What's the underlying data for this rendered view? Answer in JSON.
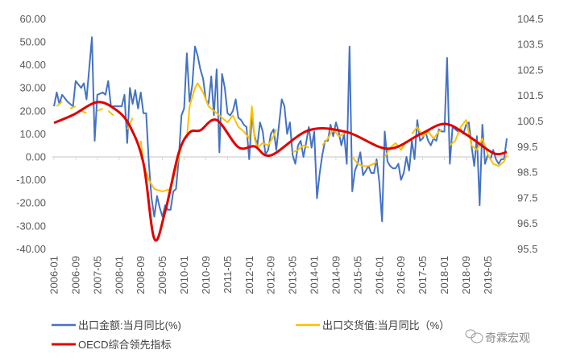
{
  "chart_data": {
    "type": "line",
    "title": "",
    "xlabel": "",
    "ylabel": "",
    "y_left": {
      "ticks": [
        "60.00",
        "50.00",
        "40.00",
        "30.00",
        "20.00",
        "10.00",
        "0.00",
        "-10.00",
        "-20.00",
        "-30.00",
        "-40.00"
      ],
      "range": [
        -40,
        60
      ]
    },
    "y_right": {
      "ticks": [
        "104.5",
        "103.5",
        "102.5",
        "101.5",
        "100.5",
        "99.5",
        "98.5",
        "97.5",
        "96.5",
        "95.5"
      ],
      "range": [
        95.5,
        104.5
      ]
    },
    "x_ticks": [
      "2006-01",
      "2006-09",
      "2007-05",
      "2008-01",
      "2008-09",
      "2009-05",
      "2010-01",
      "2010-09",
      "2011-05",
      "2012-01",
      "2012-09",
      "2013-05",
      "2014-01",
      "2014-09",
      "2015-05",
      "2016-01",
      "2016-09",
      "2017-05",
      "2018-01",
      "2018-09",
      "2019-05"
    ],
    "grid": false,
    "legend_placement": "bottom",
    "series": [
      {
        "name": "出口金额:当月同比(%)",
        "axis": "left",
        "color": "#4472C4",
        "points": [
          [
            "2006-01",
            22
          ],
          [
            "2006-02",
            28
          ],
          [
            "2006-03",
            23
          ],
          [
            "2006-04",
            27
          ],
          [
            "2006-06",
            24
          ],
          [
            "2006-08",
            22
          ],
          [
            "2006-09",
            33
          ],
          [
            "2006-11",
            30
          ],
          [
            "2006-12",
            32
          ],
          [
            "2007-01",
            25
          ],
          [
            "2007-03",
            52
          ],
          [
            "2007-04",
            7
          ],
          [
            "2007-05",
            27
          ],
          [
            "2007-07",
            28
          ],
          [
            "2007-08",
            27
          ],
          [
            "2007-09",
            33
          ],
          [
            "2007-10",
            22
          ],
          [
            "2007-12",
            22
          ],
          [
            "2008-02",
            22
          ],
          [
            "2008-03",
            27
          ],
          [
            "2008-04",
            6
          ],
          [
            "2008-05",
            30
          ],
          [
            "2008-06",
            23
          ],
          [
            "2008-07",
            29
          ],
          [
            "2008-08",
            21
          ],
          [
            "2008-09",
            28
          ],
          [
            "2008-10",
            19
          ],
          [
            "2008-11",
            19
          ],
          [
            "2008-12",
            -3
          ],
          [
            "2009-01",
            -18
          ],
          [
            "2009-02",
            -26
          ],
          [
            "2009-03",
            -17
          ],
          [
            "2009-04",
            -22
          ],
          [
            "2009-05",
            -26
          ],
          [
            "2009-06",
            -21
          ],
          [
            "2009-07",
            -23
          ],
          [
            "2009-08",
            -23
          ],
          [
            "2009-09",
            -15
          ],
          [
            "2009-10",
            -14
          ],
          [
            "2009-11",
            -1
          ],
          [
            "2009-12",
            18
          ],
          [
            "2010-01",
            21
          ],
          [
            "2010-02",
            45
          ],
          [
            "2010-03",
            24
          ],
          [
            "2010-04",
            31
          ],
          [
            "2010-05",
            48
          ],
          [
            "2010-06",
            44
          ],
          [
            "2010-07",
            38
          ],
          [
            "2010-08",
            34
          ],
          [
            "2010-09",
            25
          ],
          [
            "2010-10",
            23
          ],
          [
            "2010-11",
            35
          ],
          [
            "2010-12",
            18
          ],
          [
            "2011-01",
            38
          ],
          [
            "2011-02",
            2
          ],
          [
            "2011-03",
            36
          ],
          [
            "2011-04",
            30
          ],
          [
            "2011-05",
            19
          ],
          [
            "2011-06",
            18
          ],
          [
            "2011-07",
            20
          ],
          [
            "2011-08",
            25
          ],
          [
            "2011-09",
            17
          ],
          [
            "2011-10",
            16
          ],
          [
            "2011-11",
            14
          ],
          [
            "2011-12",
            13
          ],
          [
            "2012-01",
            -1
          ],
          [
            "2012-02",
            18
          ],
          [
            "2012-03",
            9
          ],
          [
            "2012-04",
            5
          ],
          [
            "2012-05",
            15
          ],
          [
            "2012-06",
            11
          ],
          [
            "2012-07",
            1
          ],
          [
            "2012-08",
            3
          ],
          [
            "2012-09",
            10
          ],
          [
            "2012-10",
            12
          ],
          [
            "2012-11",
            3
          ],
          [
            "2012-12",
            14
          ],
          [
            "2013-01",
            25
          ],
          [
            "2013-02",
            22
          ],
          [
            "2013-03",
            10
          ],
          [
            "2013-04",
            15
          ],
          [
            "2013-05",
            1
          ],
          [
            "2013-06",
            -3
          ],
          [
            "2013-07",
            5
          ],
          [
            "2013-08",
            7
          ],
          [
            "2013-09",
            0
          ],
          [
            "2013-10",
            6
          ],
          [
            "2013-11",
            13
          ],
          [
            "2013-12",
            4
          ],
          [
            "2014-01",
            11
          ],
          [
            "2014-02",
            -18
          ],
          [
            "2014-03",
            -7
          ],
          [
            "2014-04",
            1
          ],
          [
            "2014-05",
            7
          ],
          [
            "2014-06",
            7
          ],
          [
            "2014-07",
            14
          ],
          [
            "2014-08",
            9
          ],
          [
            "2014-09",
            15
          ],
          [
            "2014-10",
            11
          ],
          [
            "2014-11",
            5
          ],
          [
            "2014-12",
            10
          ],
          [
            "2015-01",
            -3
          ],
          [
            "2015-02",
            48
          ],
          [
            "2015-03",
            -15
          ],
          [
            "2015-04",
            -6
          ],
          [
            "2015-05",
            -3
          ],
          [
            "2015-06",
            2
          ],
          [
            "2015-07",
            -8
          ],
          [
            "2015-08",
            -6
          ],
          [
            "2015-09",
            -4
          ],
          [
            "2015-10",
            -7
          ],
          [
            "2015-11",
            -7
          ],
          [
            "2015-12",
            -1
          ],
          [
            "2016-01",
            -11
          ],
          [
            "2016-02",
            -28
          ],
          [
            "2016-03",
            11
          ],
          [
            "2016-04",
            -2
          ],
          [
            "2016-05",
            -4
          ],
          [
            "2016-06",
            -5
          ],
          [
            "2016-07",
            -5
          ],
          [
            "2016-08",
            -3
          ],
          [
            "2016-09",
            -10
          ],
          [
            "2016-10",
            -7
          ],
          [
            "2016-11",
            0
          ],
          [
            "2016-12",
            -6
          ],
          [
            "2017-01",
            7
          ],
          [
            "2017-02",
            -1
          ],
          [
            "2017-03",
            16
          ],
          [
            "2017-04",
            7
          ],
          [
            "2017-05",
            8
          ],
          [
            "2017-06",
            11
          ],
          [
            "2017-07",
            7
          ],
          [
            "2017-08",
            5
          ],
          [
            "2017-09",
            8
          ],
          [
            "2017-10",
            7
          ],
          [
            "2017-11",
            12
          ],
          [
            "2017-12",
            11
          ],
          [
            "2018-01",
            11
          ],
          [
            "2018-02",
            43
          ],
          [
            "2018-03",
            -3
          ],
          [
            "2018-04",
            13
          ],
          [
            "2018-05",
            12
          ],
          [
            "2018-06",
            11
          ],
          [
            "2018-07",
            12
          ],
          [
            "2018-08",
            10
          ],
          [
            "2018-09",
            14
          ],
          [
            "2018-10",
            15
          ],
          [
            "2018-11",
            5
          ],
          [
            "2018-12",
            -4
          ],
          [
            "2019-01",
            9
          ],
          [
            "2019-02",
            -21
          ],
          [
            "2019-03",
            14
          ],
          [
            "2019-04",
            -3
          ],
          [
            "2019-05",
            1
          ],
          [
            "2019-06",
            -1
          ],
          [
            "2019-07",
            3
          ],
          [
            "2019-08",
            -1
          ],
          [
            "2019-09",
            -3
          ],
          [
            "2019-10",
            -1
          ],
          [
            "2019-11",
            -1
          ],
          [
            "2019-12",
            8
          ]
        ]
      },
      {
        "name": "出口交货值:当月同比（%）",
        "axis": "left",
        "color": "#FFC000",
        "points": [
          [
            "2006-02",
            22
          ],
          [
            "2006-04",
            24
          ],
          [
            "2006-05",
            null
          ],
          [
            "2006-07",
            21
          ],
          [
            "2006-09",
            22
          ],
          [
            "2006-10",
            null
          ],
          [
            "2006-11",
            20
          ],
          [
            "2007-01",
            19
          ],
          [
            "2007-02",
            null
          ],
          [
            "2007-05",
            20
          ],
          [
            "2007-07",
            21
          ],
          [
            "2007-08",
            null
          ],
          [
            "2007-09",
            20
          ],
          [
            "2007-11",
            18
          ],
          [
            "2007-12",
            null
          ],
          [
            "2008-02",
            20
          ],
          [
            "2008-03",
            null
          ],
          [
            "2008-04",
            12
          ],
          [
            "2008-06",
            17
          ],
          [
            "2008-07",
            null
          ],
          [
            "2008-09",
            7
          ],
          [
            "2008-10",
            -3
          ],
          [
            "2008-12",
            -10
          ],
          [
            "2009-02",
            -14
          ],
          [
            "2009-05",
            -15
          ],
          [
            "2009-08",
            -14
          ],
          [
            "2009-10",
            -5
          ],
          [
            "2009-12",
            5
          ],
          [
            "2010-01",
            null
          ],
          [
            "2010-02",
            8
          ],
          [
            "2010-03",
            22
          ],
          [
            "2010-05",
            30
          ],
          [
            "2010-06",
            32
          ],
          [
            "2010-08",
            28
          ],
          [
            "2010-10",
            22
          ],
          [
            "2010-12",
            20
          ],
          [
            "2011-03",
            17
          ],
          [
            "2011-05",
            15
          ],
          [
            "2011-07",
            18
          ],
          [
            "2011-09",
            13
          ],
          [
            "2011-11",
            11
          ],
          [
            "2012-01",
            8
          ],
          [
            "2012-02",
            22
          ],
          [
            "2012-03",
            8
          ],
          [
            "2012-04",
            4
          ],
          [
            "2012-06",
            6
          ],
          [
            "2012-08",
            5
          ],
          [
            "2012-10",
            9
          ],
          [
            "2012-11",
            12
          ],
          [
            "2012-12",
            null
          ],
          [
            "2013-05",
            2
          ],
          [
            "2013-07",
            3
          ],
          [
            "2013-09",
            5
          ],
          [
            "2013-11",
            4
          ],
          [
            "2013-12",
            null
          ],
          [
            "2014-04",
            5
          ],
          [
            "2014-06",
            8
          ],
          [
            "2014-08",
            12
          ],
          [
            "2014-10",
            9
          ],
          [
            "2014-12",
            10
          ],
          [
            "2015-01",
            null
          ],
          [
            "2015-03",
            0
          ],
          [
            "2015-05",
            -3
          ],
          [
            "2015-07",
            -4
          ],
          [
            "2015-09",
            -4
          ],
          [
            "2015-11",
            -3
          ],
          [
            "2015-12",
            -2
          ],
          [
            "2016-01",
            null
          ],
          [
            "2016-03",
            0
          ],
          [
            "2016-05",
            4
          ],
          [
            "2016-07",
            6
          ],
          [
            "2016-09",
            3
          ],
          [
            "2016-11",
            7
          ],
          [
            "2016-12",
            null
          ],
          [
            "2017-01",
            10
          ],
          [
            "2017-03",
            13
          ],
          [
            "2017-05",
            9
          ],
          [
            "2017-07",
            11
          ],
          [
            "2017-09",
            8
          ],
          [
            "2017-11",
            11
          ],
          [
            "2017-12",
            12
          ],
          [
            "2018-01",
            null
          ],
          [
            "2018-03",
            5
          ],
          [
            "2018-05",
            7
          ],
          [
            "2018-07",
            13
          ],
          [
            "2018-09",
            16
          ],
          [
            "2018-11",
            5
          ],
          [
            "2019-01",
            3
          ],
          [
            "2019-03",
            8
          ],
          [
            "2019-05",
            1
          ],
          [
            "2019-07",
            -3
          ],
          [
            "2019-09",
            -4
          ],
          [
            "2019-11",
            -2
          ],
          [
            "2019-12",
            1
          ]
        ]
      },
      {
        "name": "OECD综合领先指标",
        "axis": "right",
        "color": "#E00000",
        "points": [
          [
            "2006-01",
            100.43
          ],
          [
            "2006-08",
            100.74
          ],
          [
            "2007-05",
            101.24
          ],
          [
            "2007-12",
            100.93
          ],
          [
            "2008-05",
            100.3
          ],
          [
            "2008-10",
            98.85
          ],
          [
            "2009-02",
            95.9
          ],
          [
            "2009-06",
            96.96
          ],
          [
            "2009-11",
            99.25
          ],
          [
            "2010-03",
            100.05
          ],
          [
            "2010-07",
            100.14
          ],
          [
            "2011-01",
            100.54
          ],
          [
            "2011-09",
            99.48
          ],
          [
            "2012-03",
            99.51
          ],
          [
            "2012-09",
            99.16
          ],
          [
            "2013-11",
            100.14
          ],
          [
            "2015-01",
            100.07
          ],
          [
            "2016-04",
            99.42
          ],
          [
            "2017-04",
            99.98
          ],
          [
            "2018-01",
            100.39
          ],
          [
            "2018-09",
            99.98
          ],
          [
            "2019-07",
            99.25
          ],
          [
            "2019-12",
            99.29
          ]
        ]
      }
    ]
  },
  "legend": {
    "items": [
      {
        "label": "出口金额:当月同比(%)",
        "color": "#4472C4"
      },
      {
        "label": "出口交货值:当月同比（%）",
        "color": "#FFC000"
      },
      {
        "label": "OECD综合领先指标",
        "color": "#E00000"
      }
    ]
  },
  "watermark": {
    "text": "奇霖宏观",
    "icon": "wechat-icon"
  }
}
